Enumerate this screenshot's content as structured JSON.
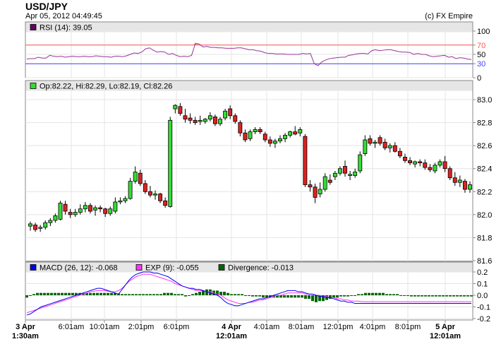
{
  "header": {
    "symbol": "USD/JPY",
    "datetime": "Apr 05, 2012 04:49:45",
    "credit": "(c) FX Empire"
  },
  "colors": {
    "up": "#33dd33",
    "down": "#dd2222",
    "rsi": "#993399",
    "rsi_overbought": "#ff5555",
    "rsi_oversold": "#4444ff",
    "macd": "#0000ee",
    "exp": "#ff33ff",
    "divergence": "#006600",
    "rsi_legend": "#660066"
  },
  "chart_data": [
    {
      "type": "line",
      "panel": "rsi",
      "legend": "RSI (14): 39.05",
      "ylim": [
        0,
        100
      ],
      "yticks": [
        "100",
        "70",
        "50",
        "30",
        "0"
      ],
      "tick_values": [
        100,
        70,
        50,
        30,
        0
      ],
      "levels": [
        70,
        30
      ],
      "values": [
        40,
        41,
        41,
        44,
        42,
        42,
        48,
        46,
        45,
        46,
        44,
        45,
        46,
        45,
        45,
        46,
        45,
        45,
        47,
        46,
        45,
        45,
        44,
        46,
        46,
        45,
        47,
        50,
        53,
        52,
        55,
        62,
        64,
        59,
        55,
        56,
        55,
        50,
        52,
        48,
        45,
        46,
        45,
        48,
        74,
        72,
        66,
        67,
        65,
        65,
        64,
        64,
        63,
        63,
        63,
        64,
        64,
        62,
        60,
        60,
        58,
        57,
        54,
        52,
        52,
        51,
        51,
        51,
        50,
        50,
        50,
        50,
        52,
        51,
        52,
        30,
        26,
        34,
        38,
        41,
        42,
        43,
        44,
        44,
        48,
        49,
        51,
        52,
        52,
        51,
        58,
        60,
        58,
        59,
        60,
        60,
        58,
        56,
        55,
        55,
        54,
        50,
        52,
        50,
        50,
        47,
        45,
        46,
        47,
        48,
        44,
        45,
        41,
        43,
        42,
        40,
        39
      ]
    },
    {
      "type": "candlestick",
      "panel": "price",
      "legend": "Op:82.22, Hi:82.29, Lo:82.19, Cl:82.26",
      "ylim": [
        81.6,
        83.0
      ],
      "yticks": [
        "83.0",
        "82.8",
        "82.6",
        "82.4",
        "82.2",
        "82.0",
        "81.8",
        "81.6"
      ],
      "tick_values": [
        83.0,
        82.8,
        82.6,
        82.4,
        82.2,
        82.0,
        81.8,
        81.6
      ],
      "ohlc": [
        [
          81.9,
          81.94,
          81.86,
          81.92
        ],
        [
          81.91,
          81.93,
          81.85,
          81.87
        ],
        [
          81.88,
          81.91,
          81.85,
          81.89
        ],
        [
          81.89,
          81.95,
          81.87,
          81.93
        ],
        [
          81.93,
          81.97,
          81.9,
          81.95
        ],
        [
          81.95,
          82.01,
          81.93,
          81.99
        ],
        [
          81.96,
          82.12,
          81.95,
          82.1
        ],
        [
          82.09,
          82.12,
          82.0,
          82.03
        ],
        [
          82.02,
          82.05,
          81.97,
          82.0
        ],
        [
          82.0,
          82.05,
          81.98,
          82.02
        ],
        [
          82.02,
          82.09,
          82.0,
          82.05
        ],
        [
          82.05,
          82.11,
          82.02,
          82.08
        ],
        [
          82.08,
          82.1,
          82.01,
          82.03
        ],
        [
          82.04,
          82.08,
          81.99,
          82.06
        ],
        [
          82.06,
          82.08,
          82.02,
          82.05
        ],
        [
          82.05,
          82.06,
          81.98,
          82.01
        ],
        [
          82.01,
          82.07,
          81.99,
          82.05
        ],
        [
          82.03,
          82.15,
          82.01,
          82.11
        ],
        [
          82.11,
          82.15,
          82.09,
          82.12
        ],
        [
          82.12,
          82.16,
          82.1,
          82.14
        ],
        [
          82.14,
          82.32,
          82.13,
          82.29
        ],
        [
          82.29,
          82.42,
          82.27,
          82.37
        ],
        [
          82.36,
          82.39,
          82.25,
          82.27
        ],
        [
          82.27,
          82.3,
          82.18,
          82.2
        ],
        [
          82.2,
          82.25,
          82.15,
          82.17
        ],
        [
          82.17,
          82.21,
          82.13,
          82.18
        ],
        [
          82.18,
          82.19,
          82.1,
          82.12
        ],
        [
          82.12,
          82.15,
          82.06,
          82.08
        ],
        [
          82.07,
          82.85,
          82.06,
          82.82
        ],
        [
          82.92,
          82.96,
          82.88,
          82.95
        ],
        [
          82.94,
          82.97,
          82.86,
          82.88
        ],
        [
          82.86,
          82.92,
          82.8,
          82.83
        ],
        [
          82.84,
          82.88,
          82.79,
          82.82
        ],
        [
          82.82,
          82.85,
          82.78,
          82.8
        ],
        [
          82.81,
          82.86,
          82.78,
          82.82
        ],
        [
          82.81,
          82.84,
          82.79,
          82.83
        ],
        [
          82.83,
          82.89,
          82.81,
          82.86
        ],
        [
          82.85,
          82.87,
          82.77,
          82.79
        ],
        [
          82.79,
          82.85,
          82.77,
          82.83
        ],
        [
          82.84,
          82.92,
          82.82,
          82.9
        ],
        [
          82.92,
          82.95,
          82.83,
          82.86
        ],
        [
          82.86,
          82.88,
          82.79,
          82.81
        ],
        [
          82.8,
          82.82,
          82.68,
          82.71
        ],
        [
          82.71,
          82.74,
          82.63,
          82.65
        ],
        [
          82.66,
          82.74,
          82.64,
          82.72
        ],
        [
          82.72,
          82.76,
          82.7,
          82.74
        ],
        [
          82.74,
          82.76,
          82.7,
          82.72
        ],
        [
          82.7,
          82.72,
          82.63,
          82.65
        ],
        [
          82.65,
          82.68,
          82.59,
          82.62
        ],
        [
          82.62,
          82.66,
          82.58,
          82.64
        ],
        [
          82.64,
          82.69,
          82.62,
          82.66
        ],
        [
          82.66,
          82.71,
          82.63,
          82.69
        ],
        [
          82.69,
          82.73,
          82.67,
          82.72
        ],
        [
          82.72,
          82.77,
          82.69,
          82.7
        ],
        [
          82.71,
          82.76,
          82.68,
          82.74
        ],
        [
          82.68,
          82.7,
          82.24,
          82.26
        ],
        [
          82.26,
          82.3,
          82.2,
          82.24
        ],
        [
          82.24,
          82.27,
          82.1,
          82.15
        ],
        [
          82.18,
          82.28,
          82.15,
          82.22
        ],
        [
          82.22,
          82.36,
          82.2,
          82.33
        ],
        [
          82.3,
          82.35,
          82.26,
          82.28
        ],
        [
          82.33,
          82.38,
          82.3,
          82.36
        ],
        [
          82.36,
          82.42,
          82.34,
          82.4
        ],
        [
          82.42,
          82.47,
          82.33,
          82.36
        ],
        [
          82.34,
          82.38,
          82.3,
          82.35
        ],
        [
          82.34,
          82.4,
          82.32,
          82.37
        ],
        [
          82.38,
          82.55,
          82.36,
          82.52
        ],
        [
          82.53,
          82.69,
          82.51,
          82.65
        ],
        [
          82.66,
          82.69,
          82.6,
          82.62
        ],
        [
          82.62,
          82.65,
          82.58,
          82.63
        ],
        [
          82.67,
          82.69,
          82.6,
          82.62
        ],
        [
          82.63,
          82.66,
          82.56,
          82.58
        ],
        [
          82.58,
          82.62,
          82.54,
          82.6
        ],
        [
          82.6,
          82.63,
          82.54,
          82.55
        ],
        [
          82.55,
          82.58,
          82.49,
          82.51
        ],
        [
          82.5,
          82.53,
          82.45,
          82.47
        ],
        [
          82.47,
          82.5,
          82.43,
          82.45
        ],
        [
          82.44,
          82.47,
          82.41,
          82.46
        ],
        [
          82.46,
          82.48,
          82.42,
          82.45
        ],
        [
          82.45,
          82.48,
          82.39,
          82.41
        ],
        [
          82.41,
          82.44,
          82.37,
          82.39
        ],
        [
          82.38,
          82.45,
          82.36,
          82.43
        ],
        [
          82.43,
          82.48,
          82.41,
          82.46
        ],
        [
          82.46,
          82.51,
          82.37,
          82.4
        ],
        [
          82.4,
          82.42,
          82.3,
          82.32
        ],
        [
          82.32,
          82.37,
          82.25,
          82.28
        ],
        [
          82.28,
          82.34,
          82.24,
          82.3
        ],
        [
          82.29,
          82.31,
          82.19,
          82.22
        ],
        [
          82.22,
          82.29,
          82.19,
          82.26
        ]
      ]
    },
    {
      "type": "bar+line",
      "panel": "macd",
      "series": [
        {
          "name": "MACD (26, 12): -0.068",
          "kind": "line"
        },
        {
          "name": "EXP (9): -0.055",
          "kind": "line"
        },
        {
          "name": "Divergence: -0.013",
          "kind": "bar"
        }
      ],
      "ylim": [
        -0.2,
        0.2
      ],
      "yticks": [
        "0.2",
        "0.1",
        "0.0",
        "-0.1",
        "-0.2"
      ],
      "tick_values": [
        0.2,
        0.1,
        0.0,
        -0.1,
        -0.2
      ],
      "macd_x": [
        0,
        5,
        10,
        15,
        20,
        25,
        30,
        35,
        40,
        45,
        50,
        55,
        60,
        65,
        70,
        75,
        80,
        85,
        90,
        95,
        100,
        105,
        110,
        115,
        120,
        125,
        130,
        135,
        140,
        145,
        150,
        155,
        160,
        165,
        170,
        175,
        180,
        185,
        190,
        195,
        200,
        205,
        210,
        215,
        220,
        225,
        230,
        235,
        240,
        245,
        250,
        255,
        260,
        265,
        270,
        275,
        280,
        285,
        290,
        295,
        300,
        305,
        310,
        315,
        320,
        325,
        330,
        335,
        340,
        345,
        350,
        355,
        360,
        365,
        370,
        375,
        380,
        385,
        390,
        395,
        400,
        405,
        410,
        415,
        420,
        425,
        430,
        435,
        440,
        445,
        450,
        455,
        460,
        465,
        470,
        475,
        480,
        485,
        490,
        495,
        500,
        505,
        510,
        515,
        520,
        525,
        530,
        535,
        540,
        545,
        550,
        555,
        560,
        565,
        570,
        575,
        580,
        585,
        590,
        595,
        600,
        605,
        610,
        615,
        620,
        625,
        630
      ],
      "macd": [
        -0.17,
        -0.16,
        -0.14,
        -0.12,
        -0.1,
        -0.09,
        -0.08,
        -0.07,
        -0.06,
        -0.05,
        -0.04,
        -0.03,
        -0.02,
        -0.01,
        0,
        0.01,
        0.02,
        0.03,
        0.04,
        0.05,
        0.06,
        0.06,
        0.05,
        0.04,
        0.03,
        0.02,
        0.01,
        0.05,
        0.09,
        0.13,
        0.16,
        0.18,
        0.19,
        0.2,
        0.2,
        0.2,
        0.19,
        0.19,
        0.18,
        0.17,
        0.16,
        0.14,
        0.12,
        0.1,
        0.08,
        0.07,
        0.06,
        0.06,
        0.05,
        0.05,
        0.04,
        0.03,
        0.02,
        0.01,
        0,
        -0.02,
        -0.05,
        -0.07,
        -0.08,
        -0.09,
        -0.09,
        -0.08,
        -0.07,
        -0.06,
        -0.05,
        -0.04,
        -0.03,
        -0.03,
        -0.02,
        -0.01,
        0,
        0.01,
        0.02,
        0.03,
        0.04,
        0.04,
        0.04,
        0.03,
        0.03,
        0.02,
        0.01,
        0.01,
        0,
        -0.01,
        -0.01,
        -0.02,
        -0.02,
        -0.03,
        -0.04,
        -0.05,
        -0.05,
        -0.06,
        -0.06,
        -0.07,
        -0.07,
        -0.07,
        -0.07,
        -0.07,
        -0.07,
        -0.07,
        -0.07,
        -0.07,
        -0.07,
        -0.07,
        -0.07,
        -0.07,
        -0.07,
        -0.07,
        -0.07,
        -0.07,
        -0.07,
        -0.07,
        -0.07,
        -0.07,
        -0.07,
        -0.07,
        -0.07,
        -0.07,
        -0.07,
        -0.07,
        -0.07,
        -0.07,
        -0.07,
        -0.07,
        -0.07,
        -0.07,
        -0.07
      ],
      "exp": [
        -0.15,
        -0.14,
        -0.13,
        -0.12,
        -0.11,
        -0.1,
        -0.09,
        -0.08,
        -0.07,
        -0.06,
        -0.05,
        -0.04,
        -0.03,
        -0.02,
        -0.01,
        0,
        0.01,
        0.02,
        0.03,
        0.035,
        0.04,
        0.04,
        0.04,
        0.035,
        0.03,
        0.03,
        0.04,
        0.06,
        0.09,
        0.12,
        0.14,
        0.16,
        0.17,
        0.18,
        0.18,
        0.18,
        0.17,
        0.16,
        0.15,
        0.14,
        0.13,
        0.12,
        0.1,
        0.09,
        0.08,
        0.07,
        0.06,
        0.05,
        0.04,
        0.04,
        0.04,
        0.03,
        0.03,
        0.02,
        0.01,
        0,
        -0.02,
        -0.04,
        -0.05,
        -0.06,
        -0.07,
        -0.07,
        -0.07,
        -0.06,
        -0.06,
        -0.05,
        -0.04,
        -0.04,
        -0.03,
        -0.02,
        -0.01,
        0,
        0,
        0.01,
        0.02,
        0.02,
        0.02,
        0.02,
        0.02,
        0.01,
        0.01,
        0.01,
        0,
        0,
        -0.01,
        -0.01,
        -0.02,
        -0.02,
        -0.03,
        -0.03,
        -0.04,
        -0.04,
        -0.05,
        -0.05,
        -0.05,
        -0.055,
        -0.055,
        -0.055,
        -0.055,
        -0.055,
        -0.055,
        -0.055,
        -0.055,
        -0.055,
        -0.055,
        -0.055,
        -0.055,
        -0.055,
        -0.055,
        -0.055,
        -0.055,
        -0.055,
        -0.055,
        -0.055,
        -0.055,
        -0.055,
        -0.055,
        -0.055,
        -0.055,
        -0.055,
        -0.055,
        -0.055,
        -0.055,
        -0.055,
        -0.055,
        -0.055,
        -0.055
      ],
      "divergence": [
        -0.02,
        0,
        0.01,
        0.02,
        0.02,
        0.02,
        0.02,
        0.02,
        0.02,
        0.02,
        0.02,
        0.02,
        0.02,
        0.02,
        0.02,
        0.02,
        0.02,
        0.02,
        0.02,
        0.02,
        0.02,
        0.02,
        0.02,
        0.02,
        0.02,
        0.02,
        0.015,
        0.01,
        0.01,
        0.01,
        0.01,
        0.01,
        0.01,
        0.01,
        0.01,
        0.01,
        0.01,
        0.01,
        0.01,
        0.02,
        0.02,
        0.02,
        0.01,
        0.01,
        0.01,
        -0.01,
        0,
        0.01,
        0.02,
        0.03,
        0.04,
        0.05,
        0.05,
        0.04,
        0.04,
        0.03,
        0.03,
        0.02,
        0.01,
        0.01,
        0.01,
        0.01,
        0,
        0,
        -0.01,
        -0.01,
        -0.01,
        -0.02,
        -0.02,
        -0.02,
        -0.02,
        -0.02,
        -0.02,
        -0.02,
        -0.02,
        -0.02,
        -0.02,
        -0.02,
        -0.02,
        -0.03,
        -0.03,
        -0.05,
        -0.06,
        -0.05,
        -0.05,
        -0.04,
        -0.03,
        -0.02,
        -0.02,
        -0.01,
        -0.01,
        -0.01,
        0,
        0,
        0.01,
        0.01,
        0.02,
        0.02,
        0.02,
        0.02,
        0.02,
        0.02,
        0.01,
        0.01,
        0.01,
        0.01,
        0,
        0,
        0,
        -0.01,
        -0.01,
        -0.01,
        -0.01,
        -0.01,
        -0.01,
        -0.01,
        -0.01,
        -0.01,
        -0.01,
        -0.01,
        -0.01,
        -0.01,
        -0.01,
        -0.01,
        -0.01,
        -0.01,
        -0.01
      ]
    }
  ],
  "x_axis": {
    "ticks": [
      {
        "line1": "3 Apr",
        "line2": "1:30am",
        "bold": true
      },
      {
        "line1": "6:01am",
        "line2": "",
        "bold": false
      },
      {
        "line1": "10:01am",
        "line2": "",
        "bold": false
      },
      {
        "line1": "2:01pm",
        "line2": "",
        "bold": false
      },
      {
        "line1": "6:01pm",
        "line2": "",
        "bold": false
      },
      {
        "line1": "4 Apr",
        "line2": "12:01am",
        "bold": true
      },
      {
        "line1": "4:01am",
        "line2": "",
        "bold": false
      },
      {
        "line1": "8:01am",
        "line2": "",
        "bold": false
      },
      {
        "line1": "12:01pm",
        "line2": "",
        "bold": false
      },
      {
        "line1": "4:01pm",
        "line2": "",
        "bold": false
      },
      {
        "line1": "8:01pm",
        "line2": "",
        "bold": false
      },
      {
        "line1": "5 Apr",
        "line2": "12:01am",
        "bold": true
      }
    ]
  }
}
